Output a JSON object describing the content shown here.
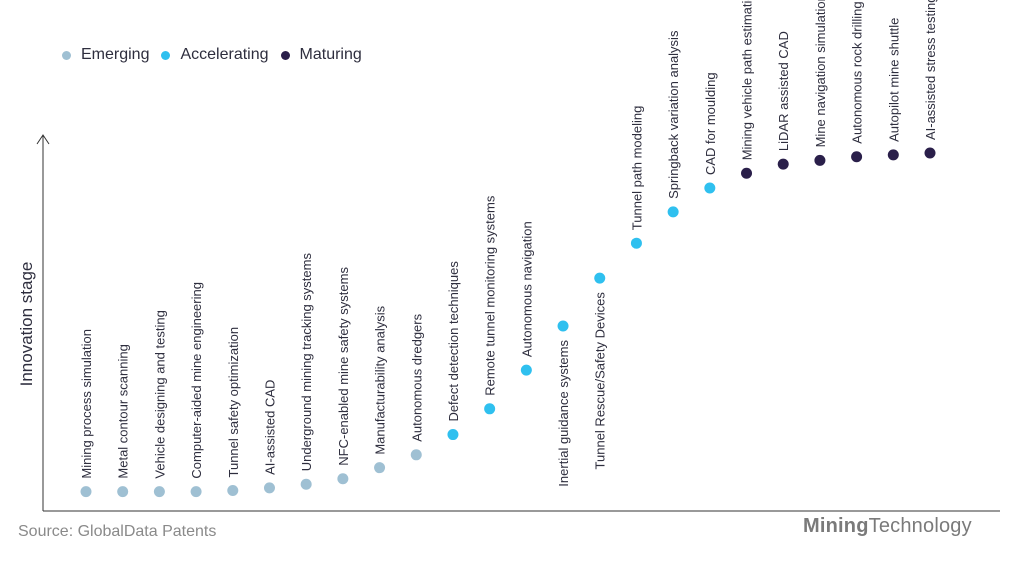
{
  "legend": [
    {
      "label": "Emerging",
      "color": "#9fc0d3"
    },
    {
      "label": "Accelerating",
      "color": "#2fc0ef"
    },
    {
      "label": "Maturing",
      "color": "#2a1f4a"
    }
  ],
  "source": "Source: GlobalData Patents",
  "brand": {
    "part1": "Mining",
    "part2": "Technology"
  },
  "chart_data": {
    "type": "scatter",
    "ylabel": "Innovation stage",
    "xlabel": "",
    "ylim": [
      0,
      100
    ],
    "grid": false,
    "legend_position": "top-left",
    "points": [
      {
        "label": "Mining process simulation",
        "stage": "Emerging",
        "value": 5
      },
      {
        "label": "Metal contour scanning",
        "stage": "Emerging",
        "value": 5
      },
      {
        "label": "Vehicle designing and testing",
        "stage": "Emerging",
        "value": 5
      },
      {
        "label": "Computer-aided mine engineering",
        "stage": "Emerging",
        "value": 5
      },
      {
        "label": "Tunnel safety optimization",
        "stage": "Emerging",
        "value": 5.3
      },
      {
        "label": "AI-assisted CAD",
        "stage": "Emerging",
        "value": 6
      },
      {
        "label": "Underground mining tracking systems",
        "stage": "Emerging",
        "value": 7
      },
      {
        "label": "NFC-enabled mine safety systems",
        "stage": "Emerging",
        "value": 8.5
      },
      {
        "label": "Manufacturability analysis",
        "stage": "Emerging",
        "value": 11.5
      },
      {
        "label": "Autonomous dredgers",
        "stage": "Emerging",
        "value": 15
      },
      {
        "label": "Defect detection techniques",
        "stage": "Accelerating",
        "value": 20.5
      },
      {
        "label": "Remote tunnel monitoring systems",
        "stage": "Accelerating",
        "value": 27.5
      },
      {
        "label": "Autonomous navigation",
        "stage": "Accelerating",
        "value": 38
      },
      {
        "label": "Inertial guidance systems",
        "stage": "Accelerating",
        "value": 50
      },
      {
        "label": "Tunnel Rescue/Safety Devices",
        "stage": "Accelerating",
        "value": 63
      },
      {
        "label": "Tunnel path modeling",
        "stage": "Accelerating",
        "value": 72.5
      },
      {
        "label": "Springback variation analysis",
        "stage": "Accelerating",
        "value": 81
      },
      {
        "label": "CAD for moulding",
        "stage": "Accelerating",
        "value": 87.5
      },
      {
        "label": "Mining vehicle path estimation",
        "stage": "Maturing",
        "value": 91.5
      },
      {
        "label": "LiDAR assisted CAD",
        "stage": "Maturing",
        "value": 94
      },
      {
        "label": "Mine navigation simulation",
        "stage": "Maturing",
        "value": 95
      },
      {
        "label": "Autonomous rock drilling machines",
        "stage": "Maturing",
        "value": 96
      },
      {
        "label": "Autopilot mine shuttle",
        "stage": "Maturing",
        "value": 96.5
      },
      {
        "label": "AI-assisted stress testing",
        "stage": "Maturing",
        "value": 97
      }
    ]
  }
}
